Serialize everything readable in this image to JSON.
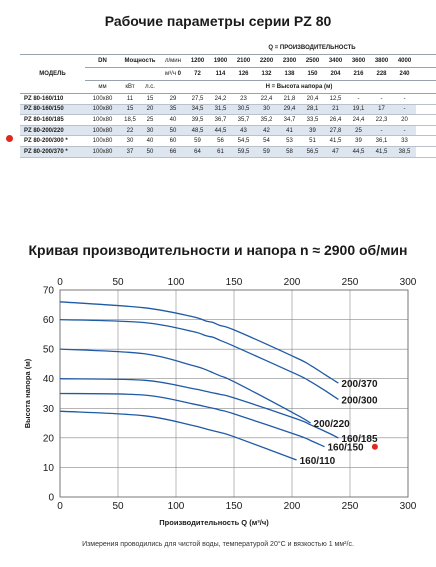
{
  "page_title": "Рабочие параметры серии PZ 80",
  "table": {
    "header": {
      "model": "МОДЕЛЬ",
      "dn": "DN",
      "power": "Мощность",
      "mm": "мм",
      "kw": "кВт",
      "hp": "л.с.",
      "unit_lmin": "л/мин",
      "unit_m3h": "м³/ч",
      "q_title": "Q = ПРОИЗВОДИТЕЛЬНОСТЬ",
      "h_title": "Н = Высота напора (м)",
      "lmin": [
        "0",
        "1200",
        "1900",
        "2100",
        "2200",
        "2300",
        "2500",
        "3400",
        "3600",
        "3800",
        "4000"
      ],
      "m3h": [
        "0",
        "72",
        "114",
        "126",
        "132",
        "138",
        "150",
        "204",
        "216",
        "228",
        "240"
      ]
    },
    "rows": [
      {
        "model": "PZ 80-160/110",
        "dn": "100x80",
        "kw": "11",
        "hp": "15",
        "h": [
          "29",
          "27,5",
          "24,2",
          "23",
          "22,4",
          "21,8",
          "20,4",
          "12,5",
          "-",
          "-",
          "-"
        ]
      },
      {
        "model": "PZ 80-160/150",
        "dn": "100x80",
        "kw": "15",
        "hp": "20",
        "h": [
          "35",
          "34,5",
          "31,5",
          "30,5",
          "30",
          "29,4",
          "28,1",
          "21",
          "19,1",
          "17",
          "-"
        ]
      },
      {
        "model": "PZ 80-160/185",
        "dn": "100x80",
        "kw": "18,5",
        "hp": "25",
        "h": [
          "40",
          "39,5",
          "36,7",
          "35,7",
          "35,2",
          "34,7",
          "33,5",
          "26,4",
          "24,4",
          "22,3",
          "20"
        ]
      },
      {
        "model": "PZ 80-200/220",
        "dn": "100x80",
        "kw": "22",
        "hp": "30",
        "h": [
          "50",
          "48,5",
          "44,5",
          "43",
          "42",
          "41",
          "39",
          "27,8",
          "25",
          "-",
          "-"
        ]
      },
      {
        "model": "PZ 80-200/300 *",
        "dn": "100x80",
        "kw": "30",
        "hp": "40",
        "h": [
          "60",
          "59",
          "56",
          "54,5",
          "54",
          "53",
          "51",
          "41,5",
          "39",
          "36,1",
          "33"
        ]
      },
      {
        "model": "PZ 80-200/370 *",
        "dn": "100x80",
        "kw": "37",
        "hp": "50",
        "h": [
          "66",
          "64",
          "61",
          "59,5",
          "59",
          "58",
          "56,5",
          "47",
          "44,5",
          "41,5",
          "38,5"
        ]
      }
    ]
  },
  "chart_title": "Кривая производительности и напора n ≈ 2900 об/мин",
  "footnote": "Измерения проводились для чистой воды, температурой 20°С и вязкостью 1 мм²/с.",
  "colors": {
    "curve": "#1f5aa6",
    "grid": "#8a8a8a",
    "marker": "#e0281e",
    "shade": "#dde5ee"
  },
  "chart_data": {
    "type": "line",
    "xlabel": "Производительность Q (м³/ч)",
    "ylabel": "Высота напора (м)",
    "xlim": [
      0,
      300
    ],
    "ylim": [
      0,
      70
    ],
    "x_ticks": [
      "0",
      "50",
      "100",
      "150",
      "200",
      "250",
      "300"
    ],
    "y_ticks": [
      "0",
      "10",
      "20",
      "30",
      "40",
      "50",
      "60",
      "70"
    ],
    "top_ticks": [
      "0",
      "50",
      "100",
      "150",
      "200",
      "250",
      "300"
    ],
    "grid": true,
    "series": [
      {
        "name": "160/110",
        "x": [
          0,
          72,
          114,
          126,
          132,
          138,
          150,
          204
        ],
        "y": [
          29,
          27.5,
          24.2,
          23,
          22.4,
          21.8,
          20.4,
          12.5
        ]
      },
      {
        "name": "160/150",
        "x": [
          0,
          72,
          114,
          126,
          132,
          138,
          150,
          204,
          216,
          228
        ],
        "y": [
          35,
          34.5,
          31.5,
          30.5,
          30,
          29.4,
          28.1,
          21,
          19.1,
          17
        ],
        "marked": true
      },
      {
        "name": "160/185",
        "x": [
          0,
          72,
          114,
          126,
          132,
          138,
          150,
          204,
          216,
          228,
          240
        ],
        "y": [
          40,
          39.5,
          36.7,
          35.7,
          35.2,
          34.7,
          33.5,
          26.4,
          24.4,
          22.3,
          20
        ]
      },
      {
        "name": "200/220",
        "x": [
          0,
          72,
          114,
          126,
          132,
          138,
          150,
          204,
          216
        ],
        "y": [
          50,
          48.5,
          44.5,
          43,
          42,
          41,
          39,
          27.8,
          25
        ]
      },
      {
        "name": "200/300",
        "x": [
          0,
          72,
          114,
          126,
          132,
          138,
          150,
          204,
          216,
          228,
          240
        ],
        "y": [
          60,
          59,
          56,
          54.5,
          54,
          53,
          51,
          41.5,
          39,
          36.1,
          33
        ]
      },
      {
        "name": "200/370",
        "x": [
          0,
          72,
          114,
          126,
          132,
          138,
          150,
          204,
          216,
          228,
          240
        ],
        "y": [
          66,
          64,
          61,
          59.5,
          59,
          58,
          56.5,
          47,
          44.5,
          41.5,
          38.5
        ]
      }
    ]
  }
}
